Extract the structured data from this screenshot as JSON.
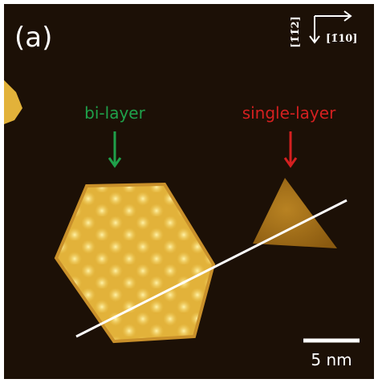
{
  "panel_label": "(a)",
  "direction_labels": {
    "vertical": "[1̄1̄2]",
    "horizontal": "[1̄10]"
  },
  "annotations": {
    "bilayer": "bi-layer",
    "single_layer": "single-layer"
  },
  "scale_bar": "5 nm"
}
